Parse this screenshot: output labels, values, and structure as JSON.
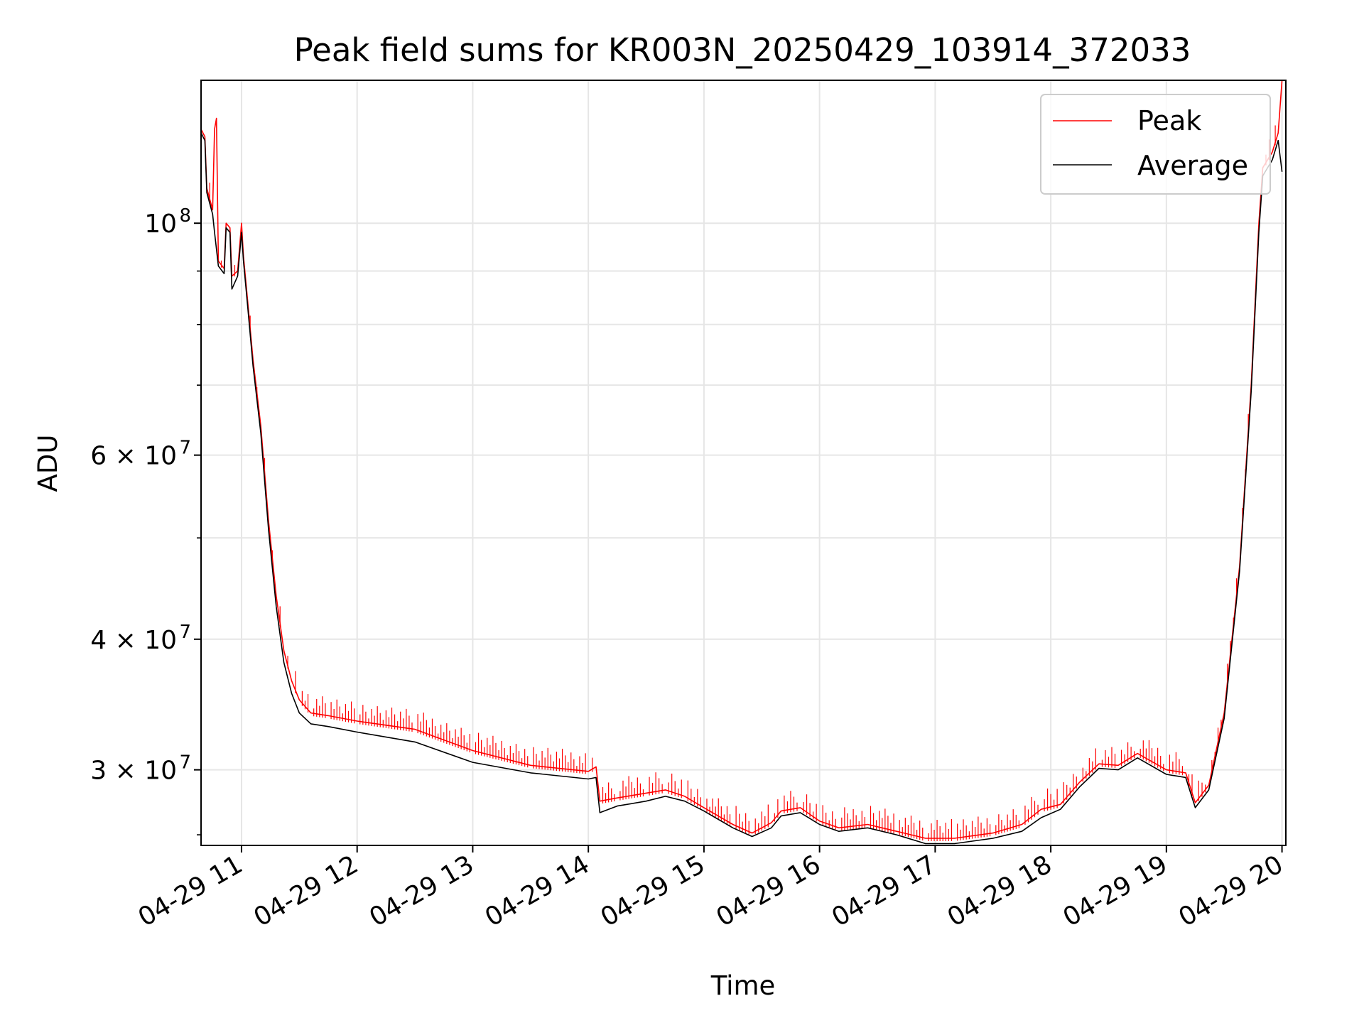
{
  "chart_data": {
    "type": "line",
    "title": "Peak field sums for KR003N_20250429_103914_372033",
    "xlabel": "Time",
    "ylabel": "ADU",
    "x_scale": "time",
    "y_scale": "log",
    "xlim": [
      "2025-04-29 10:39",
      "2025-04-29 20:02"
    ],
    "ylim": [
      25400000,
      137000000
    ],
    "x_ticks": [
      {
        "value": "2025-04-29 11:00",
        "label": "04-29 11"
      },
      {
        "value": "2025-04-29 12:00",
        "label": "04-29 12"
      },
      {
        "value": "2025-04-29 13:00",
        "label": "04-29 13"
      },
      {
        "value": "2025-04-29 14:00",
        "label": "04-29 14"
      },
      {
        "value": "2025-04-29 15:00",
        "label": "04-29 15"
      },
      {
        "value": "2025-04-29 16:00",
        "label": "04-29 16"
      },
      {
        "value": "2025-04-29 17:00",
        "label": "04-29 17"
      },
      {
        "value": "2025-04-29 18:00",
        "label": "04-29 18"
      },
      {
        "value": "2025-04-29 19:00",
        "label": "04-29 19"
      },
      {
        "value": "2025-04-29 20:00",
        "label": "04-29 20"
      }
    ],
    "y_major_ticks": [
      {
        "value": 100000000,
        "base": "10",
        "exp": "8"
      },
      {
        "value": 60000000,
        "base": "6 × 10",
        "exp": "7"
      },
      {
        "value": 40000000,
        "base": "4 × 10",
        "exp": "7"
      },
      {
        "value": 30000000,
        "base": "3 × 10",
        "exp": "7"
      }
    ],
    "y_minor_ticks": [
      90000000,
      80000000,
      70000000,
      50000000
    ],
    "grid": true,
    "legend_position": "upper right",
    "series": [
      {
        "name": "Peak",
        "color": "#ff0000",
        "spikes": true,
        "points": [
          [
            "2025-04-29 10:39",
            123000000
          ],
          [
            "2025-04-29 10:41",
            121000000
          ],
          [
            "2025-04-29 10:42",
            108000000
          ],
          [
            "2025-04-29 10:45",
            103000000
          ],
          [
            "2025-04-29 10:46",
            123000000
          ],
          [
            "2025-04-29 10:47",
            126000000
          ],
          [
            "2025-04-29 10:48",
            92000000
          ],
          [
            "2025-04-29 10:51",
            90500000
          ],
          [
            "2025-04-29 10:52",
            100000000
          ],
          [
            "2025-04-29 10:54",
            99000000
          ],
          [
            "2025-04-29 10:55",
            89000000
          ],
          [
            "2025-04-29 10:58",
            90000000
          ],
          [
            "2025-04-29 11:00",
            100000000
          ],
          [
            "2025-04-29 11:01",
            93000000
          ],
          [
            "2025-04-29 11:03",
            85000000
          ],
          [
            "2025-04-29 11:06",
            74000000
          ],
          [
            "2025-04-29 11:10",
            64000000
          ],
          [
            "2025-04-29 11:14",
            52000000
          ],
          [
            "2025-04-29 11:18",
            44000000
          ],
          [
            "2025-04-29 11:22",
            39000000
          ],
          [
            "2025-04-29 11:26",
            36500000
          ],
          [
            "2025-04-29 11:30",
            35000000
          ],
          [
            "2025-04-29 11:36",
            34000000
          ],
          [
            "2025-04-29 11:45",
            33800000
          ],
          [
            "2025-04-29 12:00",
            33400000
          ],
          [
            "2025-04-29 12:30",
            32800000
          ],
          [
            "2025-04-29 13:00",
            31300000
          ],
          [
            "2025-04-29 13:30",
            30300000
          ],
          [
            "2025-04-29 14:00",
            29900000
          ],
          [
            "2025-04-29 14:04",
            30200000
          ],
          [
            "2025-04-29 14:06",
            28000000
          ],
          [
            "2025-04-29 14:15",
            28200000
          ],
          [
            "2025-04-29 14:30",
            28500000
          ],
          [
            "2025-04-29 14:40",
            28700000
          ],
          [
            "2025-04-29 14:50",
            28300000
          ],
          [
            "2025-04-29 15:00",
            27600000
          ],
          [
            "2025-04-29 15:15",
            26600000
          ],
          [
            "2025-04-29 15:25",
            26100000
          ],
          [
            "2025-04-29 15:35",
            26700000
          ],
          [
            "2025-04-29 15:40",
            27400000
          ],
          [
            "2025-04-29 15:50",
            27600000
          ],
          [
            "2025-04-29 16:00",
            26800000
          ],
          [
            "2025-04-29 16:10",
            26400000
          ],
          [
            "2025-04-29 16:25",
            26600000
          ],
          [
            "2025-04-29 16:40",
            26200000
          ],
          [
            "2025-04-29 16:55",
            25800000
          ],
          [
            "2025-04-29 17:10",
            25800000
          ],
          [
            "2025-04-29 17:30",
            26100000
          ],
          [
            "2025-04-29 17:45",
            26600000
          ],
          [
            "2025-04-29 17:55",
            27500000
          ],
          [
            "2025-04-29 18:05",
            27800000
          ],
          [
            "2025-04-29 18:15",
            29200000
          ],
          [
            "2025-04-29 18:25",
            30400000
          ],
          [
            "2025-04-29 18:35",
            30300000
          ],
          [
            "2025-04-29 18:45",
            31100000
          ],
          [
            "2025-04-29 19:00",
            30000000
          ],
          [
            "2025-04-29 19:10",
            29800000
          ],
          [
            "2025-04-29 19:15",
            27900000
          ],
          [
            "2025-04-29 19:22",
            29000000
          ],
          [
            "2025-04-29 19:30",
            34000000
          ],
          [
            "2025-04-29 19:38",
            47000000
          ],
          [
            "2025-04-29 19:44",
            70000000
          ],
          [
            "2025-04-29 19:48",
            100000000
          ],
          [
            "2025-04-29 19:50",
            113000000
          ],
          [
            "2025-04-29 19:55",
            117000000
          ],
          [
            "2025-04-29 19:58",
            122000000
          ],
          [
            "2025-04-29 20:00",
            137000000
          ]
        ]
      },
      {
        "name": "Average",
        "color": "#000000",
        "spikes": false,
        "points": [
          [
            "2025-04-29 10:39",
            122000000
          ],
          [
            "2025-04-29 10:41",
            120000000
          ],
          [
            "2025-04-29 10:42",
            107000000
          ],
          [
            "2025-04-29 10:45",
            102000000
          ],
          [
            "2025-04-29 10:46",
            98000000
          ],
          [
            "2025-04-29 10:48",
            91000000
          ],
          [
            "2025-04-29 10:51",
            89500000
          ],
          [
            "2025-04-29 10:52",
            99000000
          ],
          [
            "2025-04-29 10:54",
            98000000
          ],
          [
            "2025-04-29 10:55",
            86500000
          ],
          [
            "2025-04-29 10:58",
            89000000
          ],
          [
            "2025-04-29 11:00",
            98000000
          ],
          [
            "2025-04-29 11:01",
            92000000
          ],
          [
            "2025-04-29 11:03",
            84000000
          ],
          [
            "2025-04-29 11:06",
            73000000
          ],
          [
            "2025-04-29 11:10",
            63000000
          ],
          [
            "2025-04-29 11:14",
            51000000
          ],
          [
            "2025-04-29 11:18",
            43000000
          ],
          [
            "2025-04-29 11:22",
            38000000
          ],
          [
            "2025-04-29 11:26",
            35500000
          ],
          [
            "2025-04-29 11:30",
            34000000
          ],
          [
            "2025-04-29 11:36",
            33200000
          ],
          [
            "2025-04-29 11:45",
            33000000
          ],
          [
            "2025-04-29 12:00",
            32600000
          ],
          [
            "2025-04-29 12:30",
            31900000
          ],
          [
            "2025-04-29 13:00",
            30500000
          ],
          [
            "2025-04-29 13:30",
            29800000
          ],
          [
            "2025-04-29 14:00",
            29400000
          ],
          [
            "2025-04-29 14:04",
            29500000
          ],
          [
            "2025-04-29 14:06",
            27300000
          ],
          [
            "2025-04-29 14:15",
            27700000
          ],
          [
            "2025-04-29 14:30",
            28000000
          ],
          [
            "2025-04-29 14:40",
            28300000
          ],
          [
            "2025-04-29 14:50",
            28000000
          ],
          [
            "2025-04-29 15:00",
            27400000
          ],
          [
            "2025-04-29 15:15",
            26400000
          ],
          [
            "2025-04-29 15:25",
            25900000
          ],
          [
            "2025-04-29 15:35",
            26400000
          ],
          [
            "2025-04-29 15:40",
            27100000
          ],
          [
            "2025-04-29 15:50",
            27300000
          ],
          [
            "2025-04-29 16:00",
            26600000
          ],
          [
            "2025-04-29 16:10",
            26200000
          ],
          [
            "2025-04-29 16:25",
            26400000
          ],
          [
            "2025-04-29 16:40",
            26000000
          ],
          [
            "2025-04-29 16:55",
            25500000
          ],
          [
            "2025-04-29 17:10",
            25500000
          ],
          [
            "2025-04-29 17:30",
            25800000
          ],
          [
            "2025-04-29 17:45",
            26200000
          ],
          [
            "2025-04-29 17:55",
            27000000
          ],
          [
            "2025-04-29 18:05",
            27500000
          ],
          [
            "2025-04-29 18:15",
            28900000
          ],
          [
            "2025-04-29 18:25",
            30100000
          ],
          [
            "2025-04-29 18:35",
            30000000
          ],
          [
            "2025-04-29 18:45",
            30800000
          ],
          [
            "2025-04-29 19:00",
            29700000
          ],
          [
            "2025-04-29 19:10",
            29500000
          ],
          [
            "2025-04-29 19:15",
            27600000
          ],
          [
            "2025-04-29 19:22",
            28700000
          ],
          [
            "2025-04-29 19:30",
            33600000
          ],
          [
            "2025-04-29 19:38",
            46500000
          ],
          [
            "2025-04-29 19:44",
            69000000
          ],
          [
            "2025-04-29 19:48",
            98000000
          ],
          [
            "2025-04-29 19:50",
            111000000
          ],
          [
            "2025-04-29 19:55",
            115000000
          ],
          [
            "2025-04-29 19:58",
            120000000
          ],
          [
            "2025-04-29 20:00",
            112000000
          ]
        ]
      }
    ]
  }
}
